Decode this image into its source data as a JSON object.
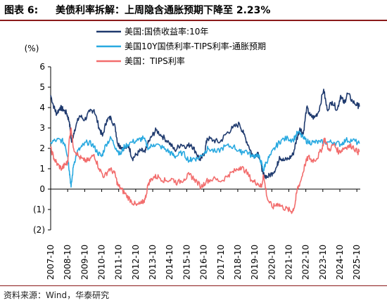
{
  "figure": {
    "label": "图表 6:",
    "title": "美债利率拆解：上周隐含通胀预期下降至 2.23%",
    "source": "资料来源：Wind，华泰研究"
  },
  "chart_data": {
    "type": "line",
    "ylabel": "(%)",
    "ylim": [
      -2,
      6
    ],
    "y_ticks": [
      6,
      5,
      4,
      3,
      2,
      1,
      0,
      -1,
      -2
    ],
    "y_tick_labels": [
      "6",
      "5",
      "4",
      "3",
      "2",
      "1",
      "0",
      "(1)",
      "(2)"
    ],
    "x_tick_labels": [
      "2007-10",
      "2008-10",
      "2009-10",
      "2010-10",
      "2011-10",
      "2012-10",
      "2013-10",
      "2014-10",
      "2015-10",
      "2016-10",
      "2017-10",
      "2018-10",
      "2019-10",
      "2020-10",
      "2021-10",
      "2022-10",
      "2023-10",
      "2024-10",
      "2025-10"
    ],
    "xlim": [
      2007.75,
      2025.95
    ],
    "legend_position": "top",
    "grid": false,
    "series": [
      {
        "name": "美国:国债收益率:10年",
        "color": "#1f3a6e",
        "x": [
          2007.75,
          2007.95,
          2008.1,
          2008.3,
          2008.5,
          2008.7,
          2008.85,
          2008.98,
          2009.15,
          2009.45,
          2009.75,
          2010.05,
          2010.3,
          2010.6,
          2010.8,
          2011.05,
          2011.3,
          2011.55,
          2011.7,
          2011.85,
          2012.1,
          2012.35,
          2012.55,
          2012.8,
          2013.05,
          2013.3,
          2013.45,
          2013.7,
          2013.95,
          2014.3,
          2014.7,
          2015.05,
          2015.4,
          2015.75,
          2016.0,
          2016.3,
          2016.55,
          2016.8,
          2016.95,
          2017.3,
          2017.7,
          2018.05,
          2018.45,
          2018.85,
          2019.1,
          2019.4,
          2019.65,
          2019.95,
          2020.15,
          2020.25,
          2020.5,
          2020.8,
          2021.05,
          2021.2,
          2021.45,
          2021.75,
          2022.0,
          2022.2,
          2022.4,
          2022.6,
          2022.8,
          2023.0,
          2023.25,
          2023.5,
          2023.8,
          2024.0,
          2024.3,
          2024.6,
          2024.8,
          2025.0,
          2025.2,
          2025.5,
          2025.8,
          2025.9
        ],
        "y": [
          4.6,
          4.0,
          3.7,
          4.0,
          3.9,
          3.7,
          3.3,
          2.3,
          2.9,
          3.6,
          3.4,
          3.8,
          3.9,
          3.0,
          2.6,
          3.4,
          3.5,
          3.0,
          2.2,
          2.1,
          2.0,
          2.1,
          1.5,
          1.7,
          1.9,
          1.8,
          2.2,
          2.6,
          2.9,
          2.6,
          2.3,
          1.9,
          2.2,
          2.1,
          2.2,
          1.8,
          1.4,
          1.8,
          2.5,
          2.4,
          2.3,
          2.7,
          3.0,
          3.2,
          2.7,
          2.1,
          1.6,
          1.8,
          1.1,
          0.7,
          0.6,
          0.8,
          1.1,
          1.6,
          1.4,
          1.5,
          1.7,
          2.4,
          3.0,
          2.7,
          4.0,
          3.6,
          3.5,
          3.8,
          4.9,
          3.9,
          4.3,
          3.9,
          4.6,
          4.2,
          4.7,
          4.3,
          4.1,
          4.05
        ]
      },
      {
        "name": "美国10Y国债利率-TIPS利率-通胀预期",
        "color": "#29a9e0",
        "x": [
          2007.75,
          2008.1,
          2008.4,
          2008.6,
          2008.75,
          2008.85,
          2008.95,
          2009.1,
          2009.3,
          2009.6,
          2009.9,
          2010.2,
          2010.5,
          2010.75,
          2011.0,
          2011.3,
          2011.6,
          2011.85,
          2012.1,
          2012.5,
          2012.9,
          2013.2,
          2013.5,
          2013.8,
          2014.2,
          2014.6,
          2014.9,
          2015.1,
          2015.5,
          2015.9,
          2016.1,
          2016.4,
          2016.8,
          2017.0,
          2017.5,
          2018.0,
          2018.5,
          2018.9,
          2019.2,
          2019.6,
          2019.9,
          2020.1,
          2020.25,
          2020.4,
          2020.7,
          2021.0,
          2021.3,
          2021.7,
          2022.0,
          2022.3,
          2022.6,
          2022.9,
          2023.2,
          2023.6,
          2024.0,
          2024.4,
          2024.8,
          2025.1,
          2025.5,
          2025.9
        ],
        "y": [
          2.3,
          2.4,
          2.4,
          2.2,
          1.6,
          0.9,
          0.1,
          1.2,
          1.8,
          2.1,
          2.3,
          2.2,
          1.8,
          1.6,
          2.2,
          2.5,
          2.0,
          1.7,
          2.1,
          2.3,
          2.4,
          2.5,
          2.0,
          2.2,
          2.1,
          1.9,
          1.7,
          1.6,
          1.8,
          1.4,
          1.5,
          1.5,
          1.8,
          2.0,
          1.8,
          2.1,
          2.1,
          1.8,
          1.9,
          1.6,
          1.7,
          1.4,
          0.9,
          1.3,
          1.7,
          2.1,
          2.4,
          2.5,
          2.4,
          2.8,
          2.5,
          2.3,
          2.3,
          2.3,
          2.3,
          2.3,
          2.2,
          2.4,
          2.4,
          2.23
        ]
      },
      {
        "name": "美国：TIPS利率",
        "color": "#f26d6d",
        "x": [
          2007.75,
          2007.95,
          2008.15,
          2008.4,
          2008.6,
          2008.75,
          2008.85,
          2008.95,
          2009.1,
          2009.4,
          2009.7,
          2010.0,
          2010.3,
          2010.6,
          2010.9,
          2011.2,
          2011.5,
          2011.7,
          2011.9,
          2012.2,
          2012.5,
          2012.8,
          2013.1,
          2013.3,
          2013.5,
          2013.8,
          2014.1,
          2014.5,
          2014.9,
          2015.2,
          2015.6,
          2015.9,
          2016.2,
          2016.6,
          2016.9,
          2017.3,
          2017.8,
          2018.2,
          2018.6,
          2018.9,
          2019.2,
          2019.6,
          2019.9,
          2020.15,
          2020.25,
          2020.5,
          2020.8,
          2021.1,
          2021.4,
          2021.7,
          2021.95,
          2022.1,
          2022.25,
          2022.45,
          2022.7,
          2022.9,
          2023.1,
          2023.4,
          2023.7,
          2023.85,
          2024.1,
          2024.4,
          2024.7,
          2024.95,
          2025.2,
          2025.5,
          2025.8,
          2025.9
        ],
        "y": [
          2.0,
          1.5,
          1.2,
          1.0,
          1.2,
          1.3,
          2.5,
          3.0,
          2.0,
          1.6,
          1.4,
          1.4,
          1.7,
          1.0,
          0.6,
          1.0,
          0.8,
          0.2,
          0.0,
          -0.3,
          -0.6,
          -0.8,
          -0.7,
          -0.5,
          0.3,
          0.6,
          0.6,
          0.4,
          0.5,
          0.3,
          0.5,
          0.7,
          0.5,
          0.1,
          0.4,
          0.5,
          0.4,
          0.7,
          0.9,
          1.1,
          0.9,
          0.4,
          0.3,
          0.1,
          0.7,
          -0.5,
          -0.9,
          -0.7,
          -0.9,
          -1.0,
          -1.1,
          -0.8,
          0.0,
          0.4,
          1.2,
          1.6,
          1.4,
          1.5,
          2.0,
          2.5,
          1.9,
          2.2,
          1.8,
          2.0,
          2.1,
          2.1,
          1.8,
          1.9
        ]
      }
    ]
  }
}
